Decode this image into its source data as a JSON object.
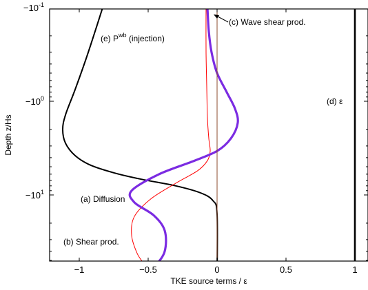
{
  "chart_data": {
    "type": "line",
    "xlabel": "TKE source terms / ε",
    "ylabel": "Depth z/Hs",
    "xlim": [
      -1.2,
      1.0
    ],
    "xticks": [
      -1,
      -0.5,
      0,
      0.5,
      1
    ],
    "xtick_labels": [
      "−1",
      "−0.5",
      "0",
      "0.5",
      "1"
    ],
    "ylog": true,
    "ytick_labels": [
      "−10^-1",
      "−10^0",
      "−10^1"
    ],
    "ytick_depths": [
      0.1,
      1,
      10
    ],
    "grid": false,
    "colors": {
      "diffusion": "#000000",
      "shear": "#ff0000",
      "injection": "#7b2be2",
      "wave_shear": "#8b4a2b",
      "dissipation": "#000000"
    },
    "annotations": {
      "a": "(a) Diffusion",
      "b": "(b) Shear prod.",
      "c": "(c) Wave shear prod.",
      "d": "(d) ε",
      "e_prefix": "(e) P",
      "e_sup": "wb",
      "e_suffix": " (injection)"
    },
    "series": [
      {
        "key": "diffusion",
        "x": [
          -0.83,
          -0.88,
          -0.95,
          -1.03,
          -1.1,
          -1.12,
          -1.1,
          -1.03,
          -0.92,
          -0.75,
          -0.55,
          -0.3,
          -0.12,
          -0.03,
          0.0,
          0.0
        ],
        "depth": [
          0.1,
          0.17,
          0.35,
          0.75,
          1.4,
          2.0,
          2.8,
          3.8,
          4.8,
          5.8,
          6.8,
          8.0,
          9.5,
          11.5,
          16,
          75
        ]
      },
      {
        "key": "shear",
        "x": [
          -0.08,
          -0.08,
          -0.075,
          -0.07,
          -0.06,
          -0.05,
          -0.07,
          -0.14,
          -0.3,
          -0.48,
          -0.6,
          -0.62,
          -0.58,
          -0.52,
          -0.5
        ],
        "depth": [
          0.1,
          0.3,
          0.7,
          1.5,
          2.5,
          3.4,
          4.3,
          5.5,
          7.5,
          11,
          17,
          27,
          42,
          58,
          75
        ]
      },
      {
        "key": "injection",
        "x": [
          -0.07,
          -0.06,
          -0.04,
          0.0,
          0.07,
          0.13,
          0.15,
          0.1,
          0.0,
          -0.18,
          -0.42,
          -0.62,
          -0.6,
          -0.46,
          -0.38,
          -0.38,
          -0.45,
          -0.51
        ],
        "depth": [
          0.1,
          0.18,
          0.3,
          0.5,
          0.8,
          1.2,
          1.7,
          2.5,
          3.4,
          4.4,
          6.0,
          9.0,
          12.0,
          16.5,
          24,
          40,
          58,
          75
        ]
      },
      {
        "key": "wave_shear",
        "x": [
          0.0,
          0.0
        ],
        "depth": [
          0.1,
          75
        ]
      },
      {
        "key": "dissipation",
        "x": [
          1.0,
          1.0
        ],
        "depth": [
          0.1,
          75
        ]
      }
    ]
  }
}
